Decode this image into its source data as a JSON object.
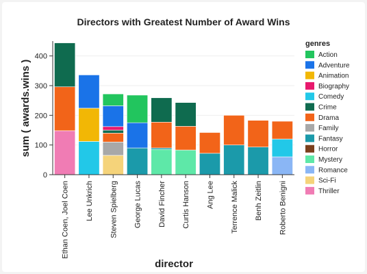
{
  "chart_data": {
    "type": "bar",
    "stacked": true,
    "title": "Directors with Greatest Number of Award Wins",
    "xlabel": "director",
    "ylabel": "sum ( awards.wins )",
    "ylim": [
      0,
      450
    ],
    "yticks": [
      0,
      100,
      200,
      300,
      400
    ],
    "grid": true,
    "legend_position": "right",
    "legend_title": "genres",
    "categories": [
      "Ethan Coen, Joel Coen",
      "Lee Unkrich",
      "Steven Spielberg",
      "George Lucas",
      "David Fincher",
      "Curtis Hanson",
      "Ang Lee",
      "Terrence Malick",
      "Benh Zeitlin",
      "Roberto Benigni"
    ],
    "series": [
      {
        "name": "Action",
        "color": "#22c55e",
        "values": [
          0,
          0,
          40,
          0,
          0,
          0,
          0,
          0,
          0,
          0
        ]
      },
      {
        "name": "Adventure",
        "color": "#1a73e8",
        "values": [
          0,
          112,
          70,
          85,
          0,
          0,
          0,
          0,
          0,
          0
        ]
      },
      {
        "name": "Animation",
        "color": "#f2b705",
        "values": [
          0,
          112,
          0,
          0,
          0,
          0,
          0,
          0,
          0,
          0
        ]
      },
      {
        "name": "Biography",
        "color": "#e8196d",
        "values": [
          0,
          0,
          12,
          0,
          0,
          0,
          0,
          0,
          0,
          0
        ]
      },
      {
        "name": "Comedy",
        "color": "#22c8e8",
        "values": [
          0,
          112,
          0,
          0,
          0,
          0,
          0,
          0,
          0,
          60
        ]
      },
      {
        "name": "Crime",
        "color": "#0f6b4f",
        "values": [
          148,
          0,
          10,
          0,
          82,
          80,
          0,
          0,
          0,
          0
        ]
      },
      {
        "name": "Drama",
        "color": "#f26419",
        "values": [
          148,
          0,
          30,
          0,
          87,
          80,
          70,
          100,
          90,
          60
        ]
      },
      {
        "name": "Family",
        "color": "#a8a8a8",
        "values": [
          0,
          0,
          45,
          0,
          0,
          0,
          0,
          0,
          0,
          0
        ]
      },
      {
        "name": "Fantasy",
        "color": "#1b9aaa",
        "values": [
          0,
          0,
          0,
          90,
          5,
          0,
          72,
          100,
          93,
          0
        ]
      },
      {
        "name": "Horror",
        "color": "#7b3f1c",
        "values": [
          0,
          0,
          0,
          0,
          0,
          0,
          0,
          0,
          0,
          0
        ]
      },
      {
        "name": "Mystery",
        "color": "#5ee8a8",
        "values": [
          0,
          0,
          0,
          0,
          85,
          83,
          0,
          0,
          0,
          0
        ]
      },
      {
        "name": "Romance",
        "color": "#8ab6f5",
        "values": [
          0,
          0,
          0,
          0,
          0,
          0,
          0,
          0,
          0,
          60
        ]
      },
      {
        "name": "Sci-Fi",
        "color": "#f5d37a",
        "values": [
          0,
          0,
          65,
          0,
          0,
          0,
          0,
          0,
          0,
          0
        ]
      },
      {
        "name": "Thriller",
        "color": "#f07cb4",
        "values": [
          148,
          0,
          0,
          0,
          0,
          0,
          0,
          0,
          0,
          0
        ]
      }
    ],
    "stack_order": [
      "Thriller",
      "Sci-Fi",
      "Mystery",
      "Fantasy",
      "Romance",
      "Comedy",
      "Family",
      "Drama",
      "Animation",
      "Biography",
      "Crime",
      "Adventure",
      "Action",
      "Horror"
    ],
    "stack_order_overrides": {
      "Steven Spielberg": [
        "Sci-Fi",
        "Family",
        "Drama",
        "Crime",
        "Biography",
        "Adventure",
        "Action"
      ],
      "George Lucas": [
        "Fantasy",
        "Adventure",
        "Action"
      ]
    },
    "extra_segments": {
      "George Lucas": [
        {
          "name": "Action",
          "value": 93
        }
      ],
      "Lee Unkrich": [],
      "Ethan Coen, Joel Coen": []
    }
  }
}
